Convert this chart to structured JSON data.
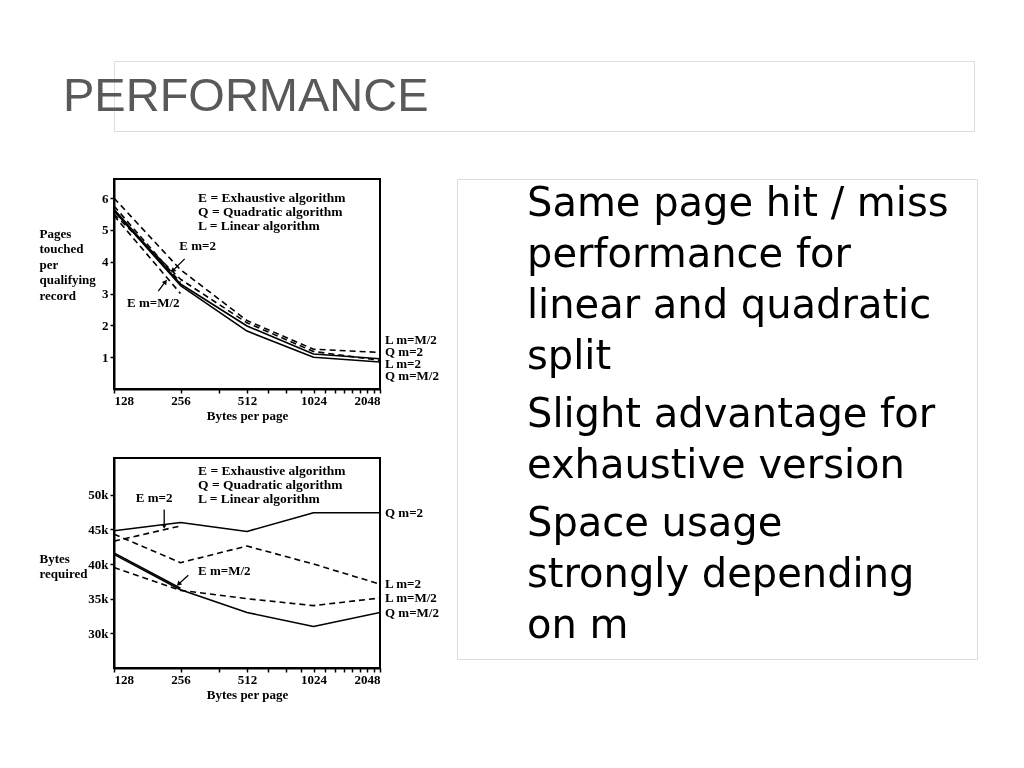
{
  "chart_data": [
    {
      "type": "other",
      "title": "PERFORMANCE"
    },
    {
      "type": "line",
      "xlabel": "Bytes per page",
      "ylabel": "Pages touched per qualifying record",
      "log": "x",
      "x": [
        128,
        256,
        512,
        1024,
        2048
      ],
      "xlim": [
        128,
        2048
      ],
      "xticks": [
        128,
        256,
        {
          "value": 384,
          "label": null
        },
        512,
        {
          "value": 640,
          "label": null
        },
        {
          "value": 768,
          "label": null
        },
        {
          "value": 896,
          "label": null
        },
        1024,
        {
          "value": 1152,
          "label": null
        },
        {
          "value": 1280,
          "label": null
        },
        {
          "value": 1408,
          "label": null
        },
        {
          "value": 1536,
          "label": null
        },
        {
          "value": 1664,
          "label": null
        },
        {
          "value": 1792,
          "label": null
        },
        {
          "value": 1920,
          "label": null
        },
        2048
      ],
      "ylim": [
        0,
        6.6
      ],
      "yticks": [
        1,
        2,
        3,
        4,
        5,
        6
      ],
      "annotations": [
        "E = Exhaustive algorithm",
        "Q = Quadratic algorithm",
        "L = Linear algorithm",
        {
          "text": "E m=2",
          "x": 231,
          "y": 3.65
        },
        {
          "text": "E m=M/2",
          "x": 223,
          "y": 3.45
        }
      ],
      "series": [
        {
          "name": "L m=M/2",
          "color": "#000000",
          "line_style": "dashed",
          "values": [
            6.0,
            3.75,
            2.15,
            1.25,
            1.15
          ]
        },
        {
          "name": "Q m=2",
          "color": "#000000",
          "line_style": "solid",
          "values": [
            5.65,
            3.3,
            1.98,
            1.1,
            0.95
          ]
        },
        {
          "name": "L m=2",
          "color": "#000000",
          "line_style": "dashed",
          "values": [
            5.5,
            3.45,
            2.08,
            1.18,
            0.9
          ]
        },
        {
          "name": "Q m=M/2",
          "color": "#000000",
          "line_style": "solid",
          "values": [
            5.6,
            3.25,
            1.82,
            1.0,
            0.85
          ]
        },
        {
          "color": "#000000",
          "line_style": "dashed",
          "values": [
            5.75,
            3.35,
            null,
            null,
            null
          ]
        },
        {
          "color": "#000000",
          "line_style": "dashed",
          "values": [
            5.45,
            3.0,
            null,
            null,
            null
          ]
        }
      ]
    },
    {
      "type": "line",
      "xlabel": "Bytes per page",
      "ylabel": "Bytes required",
      "log": "x",
      "x": [
        128,
        256,
        512,
        1024,
        2048
      ],
      "xlim": [
        128,
        2048
      ],
      "xticks": [
        128,
        256,
        {
          "value": 384,
          "label": null
        },
        512,
        {
          "value": 640,
          "label": null
        },
        {
          "value": 768,
          "label": null
        },
        {
          "value": 896,
          "label": null
        },
        1024,
        {
          "value": 1152,
          "label": null
        },
        {
          "value": 1280,
          "label": null
        },
        {
          "value": 1408,
          "label": null
        },
        {
          "value": 1536,
          "label": null
        },
        {
          "value": 1664,
          "label": null
        },
        {
          "value": 1792,
          "label": null
        },
        {
          "value": 1920,
          "label": null
        },
        2048
      ],
      "ylim": [
        25000,
        55300
      ],
      "yticks": [
        {
          "value": 30000,
          "label": "30k"
        },
        {
          "value": 35000,
          "label": "35k"
        },
        {
          "value": 40000,
          "label": "40k"
        },
        {
          "value": 45000,
          "label": "45k"
        },
        {
          "value": 50000,
          "label": "50k"
        }
      ],
      "annotations": [
        "E = Exhaustive algorithm",
        "Q = Quadratic algorithm",
        "L = Linear algorithm",
        {
          "text": "E m=2",
          "x": 216,
          "y": 45000
        },
        {
          "text": "E m=M/2",
          "x": 245,
          "y": 36800
        }
      ],
      "series": [
        {
          "name": "Q m=2",
          "color": "#000000",
          "line_style": "solid",
          "values": [
            44800,
            46000,
            44700,
            47400,
            47400
          ]
        },
        {
          "name": "L m=2",
          "color": "#000000",
          "line_style": "dashed",
          "values": [
            44300,
            40200,
            42600,
            40000,
            37100
          ]
        },
        {
          "name": "L m=M/2",
          "color": "#000000",
          "line_style": "dashed",
          "values": [
            39500,
            36200,
            35000,
            34000,
            35100
          ]
        },
        {
          "name": "Q m=M/2",
          "color": "#000000",
          "line_style": "solid",
          "values": [
            41400,
            36300,
            33000,
            31000,
            33000
          ]
        },
        {
          "color": "#000000",
          "line_style": "dashed",
          "values": [
            43300,
            45500,
            null,
            null,
            null
          ]
        },
        {
          "color": "#000000",
          "line_style": "solid",
          "values": [
            41600,
            36500,
            null,
            null,
            null
          ]
        }
      ]
    },
    {
      "type": "other",
      "annotations": [
        "Same page hit / miss performance for linear and quadratic split",
        "Slight advantage for exhaustive version",
        "Space usage strongly depending on m"
      ]
    }
  ]
}
